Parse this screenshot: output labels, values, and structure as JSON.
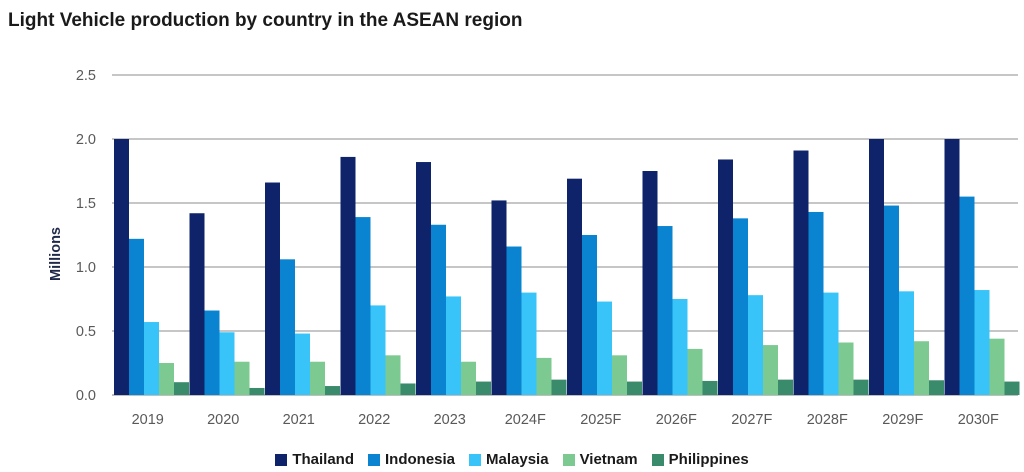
{
  "chart_data": {
    "type": "bar",
    "title": "Light Vehicle production by country in the ASEAN region",
    "ylabel": "Millions",
    "xlabel": "",
    "ylim": [
      0,
      2.5
    ],
    "yticks": [
      "0.0",
      "0.5",
      "1.0",
      "1.5",
      "2.0",
      "2.5"
    ],
    "ytick_values": [
      0,
      0.5,
      1.0,
      1.5,
      2.0,
      2.5
    ],
    "grid": true,
    "legend_position": "bottom",
    "categories": [
      "2019",
      "2020",
      "2021",
      "2022",
      "2023",
      "2024F",
      "2025F",
      "2026F",
      "2027F",
      "2028F",
      "2029F",
      "2030F"
    ],
    "series": [
      {
        "name": "Thailand",
        "color": "#0e2369",
        "values": [
          2.0,
          1.42,
          1.66,
          1.86,
          1.82,
          1.52,
          1.69,
          1.75,
          1.84,
          1.91,
          2.0,
          2.0
        ]
      },
      {
        "name": "Indonesia",
        "color": "#0a84d0",
        "values": [
          1.22,
          0.66,
          1.06,
          1.39,
          1.33,
          1.16,
          1.25,
          1.32,
          1.38,
          1.43,
          1.48,
          1.55
        ]
      },
      {
        "name": "Malaysia",
        "color": "#38c4f9",
        "values": [
          0.57,
          0.49,
          0.48,
          0.7,
          0.77,
          0.8,
          0.73,
          0.75,
          0.78,
          0.8,
          0.81,
          0.82
        ]
      },
      {
        "name": "Vietnam",
        "color": "#7cc991",
        "values": [
          0.25,
          0.26,
          0.26,
          0.31,
          0.26,
          0.29,
          0.31,
          0.36,
          0.39,
          0.41,
          0.42,
          0.44
        ]
      },
      {
        "name": "Philippines",
        "color": "#3a8a6c",
        "values": [
          0.1,
          0.055,
          0.07,
          0.09,
          0.105,
          0.12,
          0.105,
          0.11,
          0.12,
          0.12,
          0.115,
          0.105
        ]
      }
    ]
  }
}
